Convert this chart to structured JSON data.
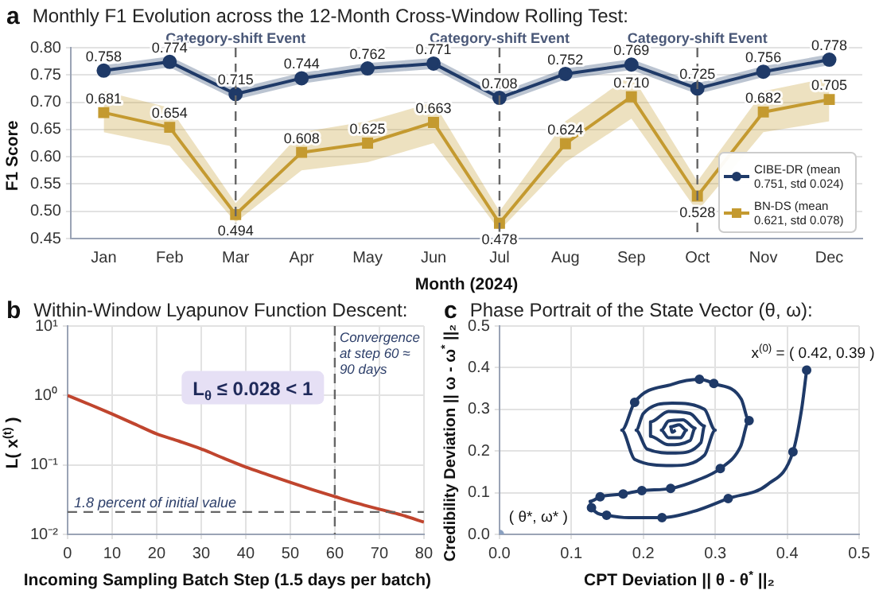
{
  "chart_data": [
    {
      "type": "line",
      "title": "Monthly F1 Evolution across the 12-Month Cross-Window Rolling Test:",
      "xlabel": "Month (2024)",
      "ylabel": "F1 Score",
      "annotations": [
        "a"
      ],
      "categories": [
        "Jan",
        "Feb",
        "Mar",
        "Apr",
        "May",
        "Jun",
        "Jul",
        "Aug",
        "Sep",
        "Oct",
        "Nov",
        "Dec"
      ],
      "series": [
        {
          "name": "CIBE-DR (mean 0.751, std 0.024)",
          "color": "#1f3a68",
          "marker": "circle",
          "values": [
            0.758,
            0.774,
            0.715,
            0.744,
            0.762,
            0.771,
            0.708,
            0.752,
            0.769,
            0.725,
            0.756,
            0.778
          ],
          "lower": [
            0.748,
            0.764,
            0.705,
            0.734,
            0.752,
            0.761,
            0.698,
            0.742,
            0.759,
            0.715,
            0.746,
            0.768
          ],
          "upper": [
            0.768,
            0.784,
            0.725,
            0.754,
            0.772,
            0.781,
            0.718,
            0.762,
            0.779,
            0.735,
            0.766,
            0.788
          ],
          "value_labels": [
            "0.758",
            "0.774",
            "0.715",
            "0.744",
            "0.762",
            "0.771",
            "0.708",
            "0.752",
            "0.769",
            "0.725",
            "0.756",
            "0.778"
          ]
        },
        {
          "name": "BN-DS (mean 0.621, std 0.078)",
          "color": "#c49a30",
          "marker": "square",
          "values": [
            0.681,
            0.654,
            0.494,
            0.608,
            0.625,
            0.663,
            0.478,
            0.624,
            0.71,
            0.528,
            0.682,
            0.705
          ],
          "lower": [
            0.645,
            0.62,
            0.48,
            0.575,
            0.59,
            0.625,
            0.465,
            0.59,
            0.67,
            0.5,
            0.645,
            0.665
          ],
          "upper": [
            0.72,
            0.69,
            0.515,
            0.645,
            0.665,
            0.7,
            0.5,
            0.665,
            0.75,
            0.555,
            0.72,
            0.745
          ],
          "value_labels": [
            "0.681",
            "0.654",
            "0.494",
            "0.608",
            "0.625",
            "0.663",
            "0.478",
            "0.624",
            "0.710",
            "0.528",
            "0.682",
            "0.705"
          ]
        }
      ],
      "ylim": [
        0.45,
        0.8
      ],
      "yticks": [
        {
          "value": 0.45,
          "label": "0.45"
        },
        {
          "value": 0.5,
          "label": "0.50"
        },
        {
          "value": 0.55,
          "label": "0.55"
        },
        {
          "value": 0.6,
          "label": "0.60"
        },
        {
          "value": 0.65,
          "label": "0.65"
        },
        {
          "value": 0.7,
          "label": "0.70"
        },
        {
          "value": 0.75,
          "label": "0.75"
        },
        {
          "value": 0.8,
          "label": "0.80"
        }
      ],
      "ref_lines": [
        {
          "axis": "x",
          "value": "Mar",
          "label": "Category-shift Event"
        },
        {
          "axis": "x",
          "value": "Jul",
          "label": "Category-shift Event"
        },
        {
          "axis": "x",
          "value": "Oct",
          "label": "Category-shift Event"
        }
      ],
      "grid": "y",
      "legend": "bottom right"
    },
    {
      "type": "line",
      "title": "Within-Window Lyapunov Function Descent:",
      "xlabel": "Incoming Sampling Batch Step (1.5 days per batch)",
      "ylabel": "L( x$^{(t)}$ )",
      "annotations": [
        "b",
        "L$_{θ}$ ≤ 0.028 < 1"
      ],
      "x": [
        0,
        5,
        10,
        15,
        20,
        25,
        30,
        35,
        40,
        45,
        50,
        55,
        60,
        65,
        70,
        75,
        80
      ],
      "series": [
        {
          "color": "#c0452e",
          "marker": "none",
          "values": [
            1,
            0.74,
            0.54,
            0.39,
            0.28,
            0.22,
            0.17,
            0.125,
            0.093,
            0.072,
            0.056,
            0.044,
            0.035,
            0.028,
            0.023,
            0.019,
            0.015
          ]
        }
      ],
      "xlim": [
        0,
        80
      ],
      "xticks": [
        0,
        10,
        20,
        30,
        40,
        50,
        60,
        70,
        80
      ],
      "log": "y",
      "ylim": [
        0.01,
        10
      ],
      "yticks": [
        {
          "value": 0.01,
          "label": "10⁻²"
        },
        {
          "value": 0.1,
          "label": "10⁻¹"
        },
        {
          "value": 1,
          "label": "10⁰"
        },
        {
          "value": 10,
          "label": "10¹"
        }
      ],
      "ref_lines": [
        {
          "axis": "x",
          "value": 60,
          "label": "Convergence at step 60 ≈ 90 days"
        },
        {
          "axis": "y",
          "value": 0.021,
          "label": "1.8 percent of initial value"
        }
      ],
      "grid": true,
      "legend": false
    },
    {
      "type": "line",
      "title": "Phase Portrait of the State Vector (θ, ω):",
      "xlabel": "CPT Deviation || θ - θ$^{*}$ ||₂",
      "ylabel": "Credibility Deviation || ω - ω$^{*}$ ||₂",
      "annotations": [
        "c",
        {
          "text": "x$^{(0)}$ = ( 0.42, 0.39 )",
          "x": 0.427,
          "y": 0.394
        },
        {
          "text": "( θ*, ω* )",
          "x": 0,
          "y": 0
        }
      ],
      "series": [
        {
          "color": "#1f3a68",
          "marker": "none",
          "x": [
            0.427,
            0.42,
            0.408,
            0.373,
            0.318,
            0.27,
            0.226,
            0.18,
            0.149,
            0.128,
            0.126,
            0.14,
            0.172,
            0.198,
            0.238,
            0.275,
            0.307,
            0.335,
            0.347,
            0.336,
            0.298,
            0.278,
            0.24,
            0.188,
            0.17,
            0.188,
            0.24,
            0.285,
            0.3,
            0.285,
            0.24,
            0.2,
            0.19,
            0.205,
            0.245,
            0.28,
            0.285,
            0.265,
            0.235,
            0.21,
            0.21,
            0.235,
            0.265,
            0.272,
            0.255,
            0.235,
            0.225,
            0.235,
            0.252,
            0.26,
            0.25,
            0.238,
            0.24,
            0.245
          ],
          "values": [
            0.394,
            0.3,
            0.198,
            0.12,
            0.086,
            0.055,
            0.04,
            0.04,
            0.046,
            0.064,
            0.079,
            0.09,
            0.097,
            0.105,
            0.11,
            0.13,
            0.158,
            0.21,
            0.273,
            0.325,
            0.362,
            0.372,
            0.36,
            0.317,
            0.25,
            0.18,
            0.165,
            0.19,
            0.25,
            0.3,
            0.315,
            0.29,
            0.25,
            0.205,
            0.195,
            0.22,
            0.26,
            0.29,
            0.295,
            0.27,
            0.235,
            0.215,
            0.225,
            0.255,
            0.275,
            0.272,
            0.25,
            0.232,
            0.232,
            0.25,
            0.263,
            0.258,
            0.245,
            0.25
          ]
        },
        {
          "type": "scatter",
          "color": "#1f3a68",
          "marker": "circle",
          "x": [
            0.427,
            0.408,
            0.318,
            0.226,
            0.149,
            0.128,
            0.14,
            0.172,
            0.198,
            0.238,
            0.307,
            0.347,
            0.298,
            0.278,
            0.188
          ],
          "values": [
            0.394,
            0.198,
            0.086,
            0.04,
            0.046,
            0.064,
            0.09,
            0.097,
            0.105,
            0.11,
            0.158,
            0.273,
            0.362,
            0.372,
            0.317
          ]
        },
        {
          "type": "scatter",
          "color": "#8aa0c0",
          "marker": "circle",
          "x": [
            0
          ],
          "values": [
            0
          ]
        }
      ],
      "xlim": [
        0,
        0.5
      ],
      "xticks": [
        {
          "value": 0,
          "label": "0.0"
        },
        0.1,
        0.2,
        0.3,
        0.4,
        0.5
      ],
      "ylim": [
        0,
        0.5
      ],
      "yticks": [
        {
          "value": 0,
          "label": "0.0"
        },
        0.1,
        0.2,
        0.3,
        0.4,
        0.5
      ],
      "grid": true,
      "legend": false
    }
  ]
}
